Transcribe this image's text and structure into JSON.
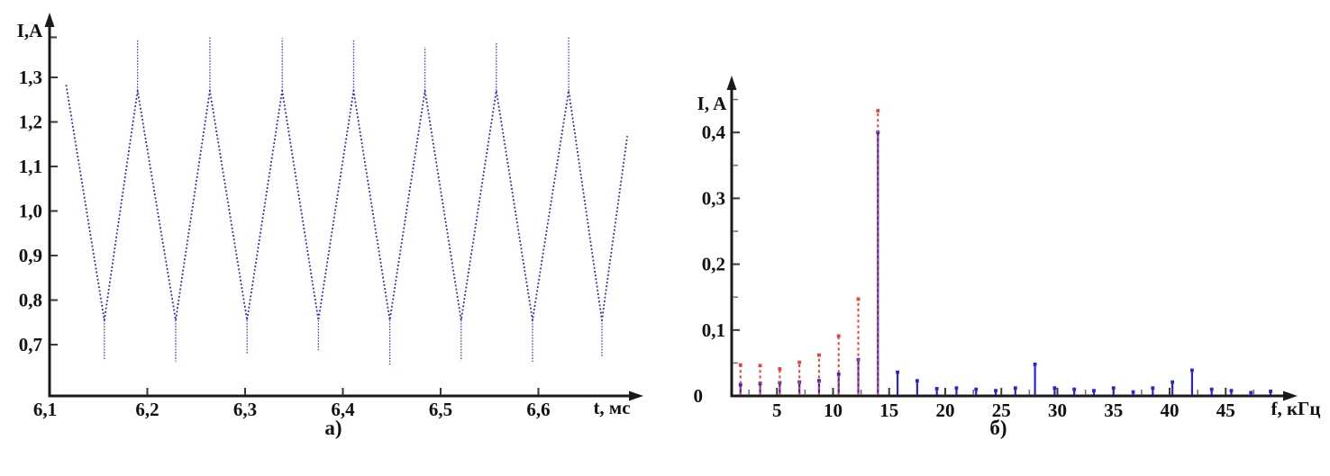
{
  "panels": {
    "a": {
      "caption": "а)"
    },
    "b": {
      "caption": "б)"
    }
  },
  "colors": {
    "axis": "#1a1a1a",
    "tick_major": "#3a3a3a",
    "tick_minor": "#6a6a6a",
    "text": "#111111",
    "waveform_blue": "#2323cf",
    "bar_blue": "#2626d8",
    "bar_red": "#ef3b3b"
  },
  "chart_data": [
    {
      "type": "line",
      "panel": "а)",
      "xlabel": "t, мс",
      "ylabel": "I,A",
      "xlim": [
        6.1,
        6.7
      ],
      "ylim": [
        0.58,
        1.43
      ],
      "grid": false,
      "legend": "none",
      "line_style": "dotted",
      "x_ticks": [
        6.2,
        6.3,
        6.4,
        6.5,
        6.6
      ],
      "x_tick_labels": [
        "6,2",
        "6,3",
        "6,4",
        "6,5",
        "6,6"
      ],
      "origin_tick_label": "6,1",
      "y_ticks": [
        0.7,
        0.8,
        0.9,
        1.0,
        1.1,
        1.2,
        1.3
      ],
      "y_tick_labels": [
        "0,7",
        "0,8",
        "0,9",
        "1,0",
        "1,1",
        "1,2",
        "1,3"
      ],
      "extra_unlabeled_y_tick": 1.39,
      "waveform": {
        "period_ms": 0.073,
        "start": [
          6.117,
          1.283
        ],
        "end": [
          6.691,
          1.168
        ],
        "trough_level": 0.755,
        "peak_level": 1.27,
        "troughs": [
          [
            6.156,
            0.668
          ],
          [
            6.229,
            0.662
          ],
          [
            6.302,
            0.678
          ],
          [
            6.375,
            0.684
          ],
          [
            6.448,
            0.652
          ],
          [
            6.521,
            0.664
          ],
          [
            6.594,
            0.66
          ],
          [
            6.665,
            0.672
          ]
        ],
        "peaks": [
          [
            6.19,
            1.386
          ],
          [
            6.264,
            1.39
          ],
          [
            6.338,
            1.388
          ],
          [
            6.411,
            1.384
          ],
          [
            6.484,
            1.368
          ],
          [
            6.557,
            1.38
          ],
          [
            6.631,
            1.39
          ]
        ]
      }
    },
    {
      "type": "bar",
      "panel": "б)",
      "xlabel": "f, кГц",
      "ylabel": "I, A",
      "xlim": [
        1,
        50
      ],
      "ylim": [
        0,
        0.45
      ],
      "grid": false,
      "legend": "none",
      "zero_label": "0",
      "x_ticks": [
        5,
        10,
        15,
        20,
        25,
        30,
        35,
        40,
        45
      ],
      "x_tick_labels": [
        "5",
        "10",
        "15",
        "20",
        "25",
        "30",
        "35",
        "40",
        "45"
      ],
      "x_minor_ticks": [
        2.5,
        7.5,
        12.5,
        17.5,
        22.5,
        27.5,
        32.5,
        37.5,
        42.5,
        47.5
      ],
      "y_ticks": [
        0.1,
        0.2,
        0.3,
        0.4
      ],
      "y_tick_labels": [
        "0,1",
        "0,2",
        "0,3",
        "0,4"
      ],
      "y_minor_ticks": [
        0.05,
        0.15,
        0.25,
        0.35,
        0.45
      ],
      "columns": [
        "f_kHz",
        "I_blue_solid_A",
        "I_red_dashed_A"
      ],
      "bars": [
        [
          1.75,
          0.017,
          0.047
        ],
        [
          3.5,
          0.019,
          0.046
        ],
        [
          5.25,
          0.02,
          0.041
        ],
        [
          7.0,
          0.021,
          0.051
        ],
        [
          8.75,
          0.023,
          0.062
        ],
        [
          10.5,
          0.033,
          0.091
        ],
        [
          12.25,
          0.055,
          0.147
        ],
        [
          14.0,
          0.4,
          0.433
        ],
        [
          15.75,
          0.036,
          null
        ],
        [
          17.5,
          0.023,
          null
        ],
        [
          19.25,
          0.011,
          null
        ],
        [
          21.0,
          0.012,
          null
        ],
        [
          22.75,
          0.01,
          null
        ],
        [
          24.5,
          0.008,
          null
        ],
        [
          26.25,
          0.012,
          null
        ],
        [
          28.0,
          0.048,
          null
        ],
        [
          29.75,
          0.012,
          null
        ],
        [
          31.5,
          0.01,
          null
        ],
        [
          33.25,
          0.008,
          null
        ],
        [
          35.0,
          0.012,
          null
        ],
        [
          36.75,
          0.006,
          null
        ],
        [
          38.5,
          0.012,
          null
        ],
        [
          40.25,
          0.021,
          null
        ],
        [
          42.0,
          0.039,
          null
        ],
        [
          43.75,
          0.01,
          null
        ],
        [
          45.5,
          0.008,
          null
        ],
        [
          47.25,
          0.005,
          null
        ],
        [
          49.0,
          0.007,
          null
        ]
      ]
    }
  ]
}
